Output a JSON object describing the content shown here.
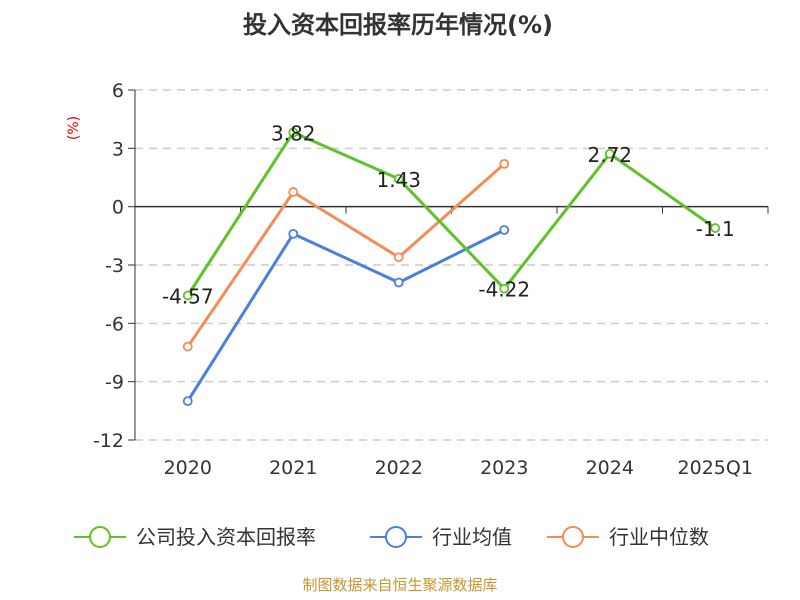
{
  "title": "投入资本回报率历年情况(%)",
  "source_text": "制图数据来自恒生聚源数据库",
  "chart_data": {
    "type": "line",
    "title": "投入资本回报率历年情况(%)",
    "ylabel": "(%)",
    "xlabel": "",
    "categories": [
      "2020",
      "2021",
      "2022",
      "2023",
      "2024",
      "2025Q1"
    ],
    "ylim": [
      -12,
      6
    ],
    "yticks": [
      6,
      3,
      0,
      -3,
      -6,
      -9,
      -12
    ],
    "grid": true,
    "legend_position": "bottom",
    "series": [
      {
        "name": "公司投入资本回报率",
        "color": "#5ec229",
        "values": [
          -4.57,
          3.82,
          1.43,
          -4.22,
          2.72,
          -1.1
        ],
        "labels": [
          "-4.57",
          "3.82",
          "1.43",
          "-4.22",
          "2.72",
          "-1.1"
        ]
      },
      {
        "name": "行业均值",
        "color": "#4a7fdc",
        "values": [
          -10.0,
          -1.4,
          -3.9,
          -1.2,
          null,
          null
        ]
      },
      {
        "name": "行业中位数",
        "color": "#f58b55",
        "values": [
          -7.2,
          0.75,
          -2.6,
          2.2,
          null,
          null
        ]
      }
    ]
  }
}
